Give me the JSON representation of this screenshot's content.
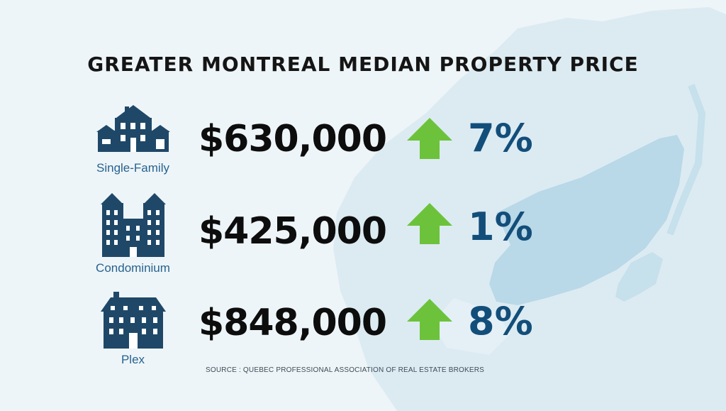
{
  "title": "GREATER MONTREAL MEDIAN PROPERTY PRICE",
  "rows": [
    {
      "label": "Single-Family",
      "price": "$630,000",
      "change": "7%",
      "icon": "single-family-house-icon"
    },
    {
      "label": "Condominium",
      "price": "$425,000",
      "change": "1%",
      "icon": "condominium-building-icon"
    },
    {
      "label": "Plex",
      "price": "$848,000",
      "change": "8%",
      "icon": "plex-building-icon"
    }
  ],
  "source": "SOURCE : QUEBEC PROFESSIONAL ASSOCIATION OF REAL ESTATE BROKERS",
  "colors": {
    "background": "#eef5f8",
    "map": "#b9d8e8",
    "icon": "#1f4868",
    "label": "#27628f",
    "percent": "#134e7a",
    "arrow": "#6cc33b"
  }
}
